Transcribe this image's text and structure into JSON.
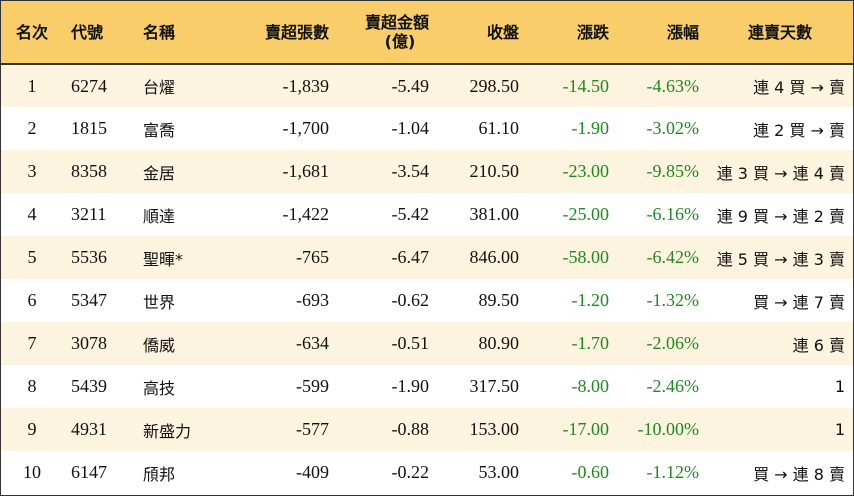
{
  "headers": {
    "rank": "名次",
    "code": "代號",
    "name": "名稱",
    "net_sell_lots": "賣超張數",
    "net_sell_amount_line1": "賣超金額",
    "net_sell_amount_line2": "(億)",
    "close": "收盤",
    "change": "漲跌",
    "change_pct": "漲幅",
    "streak": "連賣天數"
  },
  "rows": [
    {
      "rank": "1",
      "code": "6274",
      "name": "台燿",
      "lots": "-1,839",
      "amount": "-5.49",
      "close": "298.50",
      "change": "-14.50",
      "pct": "-4.63%",
      "streak": "連 4 買 → 賣"
    },
    {
      "rank": "2",
      "code": "1815",
      "name": "富喬",
      "lots": "-1,700",
      "amount": "-1.04",
      "close": "61.10",
      "change": "-1.90",
      "pct": "-3.02%",
      "streak": "連 2 買 → 賣"
    },
    {
      "rank": "3",
      "code": "8358",
      "name": "金居",
      "lots": "-1,681",
      "amount": "-3.54",
      "close": "210.50",
      "change": "-23.00",
      "pct": "-9.85%",
      "streak": "連 3 買 → 連 4 賣"
    },
    {
      "rank": "4",
      "code": "3211",
      "name": "順達",
      "lots": "-1,422",
      "amount": "-5.42",
      "close": "381.00",
      "change": "-25.00",
      "pct": "-6.16%",
      "streak": "連 9 買 → 連 2 賣"
    },
    {
      "rank": "5",
      "code": "5536",
      "name": "聖暉*",
      "lots": "-765",
      "amount": "-6.47",
      "close": "846.00",
      "change": "-58.00",
      "pct": "-6.42%",
      "streak": "連 5 買 → 連 3 賣"
    },
    {
      "rank": "6",
      "code": "5347",
      "name": "世界",
      "lots": "-693",
      "amount": "-0.62",
      "close": "89.50",
      "change": "-1.20",
      "pct": "-1.32%",
      "streak": "買 → 連 7 賣"
    },
    {
      "rank": "7",
      "code": "3078",
      "name": "僑威",
      "lots": "-634",
      "amount": "-0.51",
      "close": "80.90",
      "change": "-1.70",
      "pct": "-2.06%",
      "streak": "連 6 賣"
    },
    {
      "rank": "8",
      "code": "5439",
      "name": "高技",
      "lots": "-599",
      "amount": "-1.90",
      "close": "317.50",
      "change": "-8.00",
      "pct": "-2.46%",
      "streak": "1"
    },
    {
      "rank": "9",
      "code": "4931",
      "name": "新盛力",
      "lots": "-577",
      "amount": "-0.88",
      "close": "153.00",
      "change": "-17.00",
      "pct": "-10.00%",
      "streak": "1"
    },
    {
      "rank": "10",
      "code": "6147",
      "name": "頎邦",
      "lots": "-409",
      "amount": "-0.22",
      "close": "53.00",
      "change": "-0.60",
      "pct": "-1.12%",
      "streak": "買 → 連 8 賣"
    }
  ],
  "colors": {
    "header_bg": "#f9ce6a",
    "odd_row_bg": "#fdf4df",
    "even_row_bg": "#ffffff",
    "down_color": "#1d8a1d"
  }
}
